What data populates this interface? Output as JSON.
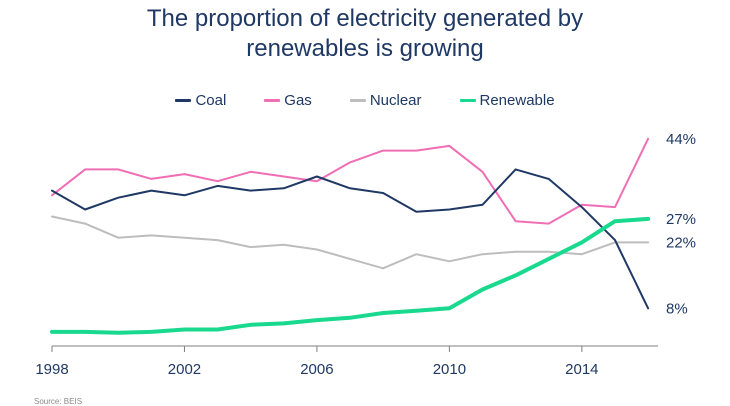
{
  "chart_data": {
    "type": "line",
    "title_lines": [
      "The proportion of electricity generated by",
      "renewables is growing"
    ],
    "xlabel": "",
    "ylabel": "",
    "x": [
      1998,
      1999,
      2000,
      2001,
      2002,
      2003,
      2004,
      2005,
      2006,
      2007,
      2008,
      2009,
      2010,
      2011,
      2012,
      2013,
      2014,
      2015,
      2016
    ],
    "xlim": [
      1998,
      2016.3
    ],
    "ylim": [
      0,
      48
    ],
    "xticks": [
      "1998",
      "2002",
      "2006",
      "2010",
      "2014"
    ],
    "legend_position": "top",
    "series": [
      {
        "name": "Coal",
        "color": "#1f3864",
        "width": 2,
        "values": [
          33,
          29,
          31.5,
          33,
          32,
          34,
          33,
          33.5,
          36,
          33.5,
          32.5,
          28.5,
          29,
          30,
          37.5,
          35.5,
          29.5,
          22.5,
          8
        ],
        "end_label": "8%"
      },
      {
        "name": "Gas",
        "color": "#f06eb4",
        "width": 2,
        "values": [
          32,
          37.5,
          37.5,
          35.5,
          36.5,
          35,
          37,
          36,
          35,
          39,
          41.5,
          41.5,
          42.5,
          37,
          26.5,
          26,
          30,
          29.5,
          44
        ],
        "end_label": "44%"
      },
      {
        "name": "Nuclear",
        "color": "#bdbdbd",
        "width": 2,
        "values": [
          27.5,
          26,
          23,
          23.5,
          23,
          22.5,
          21,
          21.5,
          20.5,
          18.5,
          16.5,
          19.5,
          18,
          19.5,
          20,
          20,
          19.5,
          22,
          22
        ],
        "end_label": "22%"
      },
      {
        "name": "Renewable",
        "color": "#19d98e",
        "width": 4,
        "values": [
          3,
          3,
          2.8,
          3,
          3.5,
          3.5,
          4.5,
          4.8,
          5.5,
          6,
          7,
          7.5,
          8,
          12,
          15,
          18.5,
          22,
          26.5,
          27
        ],
        "end_label": "27%"
      }
    ],
    "source": "Source: BEIS"
  }
}
